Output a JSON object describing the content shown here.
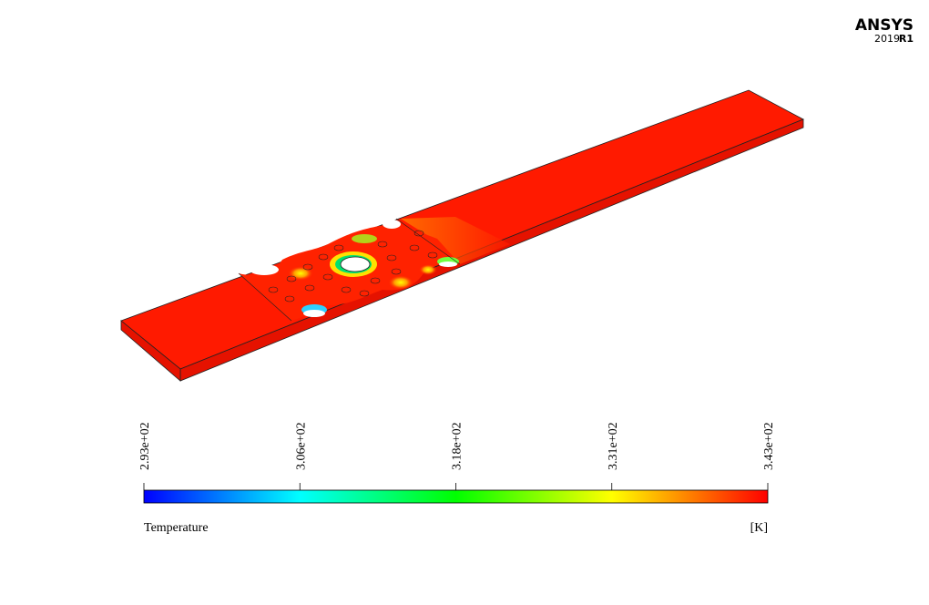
{
  "logo": {
    "brand": "ANSYS",
    "version": "2019",
    "release": "R1"
  },
  "colorbar": {
    "title": "Temperature",
    "unit": "[K]",
    "range": [
      293,
      343
    ],
    "colors": [
      "#0000ff",
      "#00ffff",
      "#00ff00",
      "#ffff00",
      "#ff0000"
    ],
    "ticks": [
      {
        "value": 293,
        "label": "2.93e+02"
      },
      {
        "value": 305.5,
        "label": "3.06e+02"
      },
      {
        "value": 318,
        "label": "3.18e+02"
      },
      {
        "value": 330.5,
        "label": "3.31e+02"
      },
      {
        "value": 343,
        "label": "3.43e+02"
      }
    ]
  }
}
